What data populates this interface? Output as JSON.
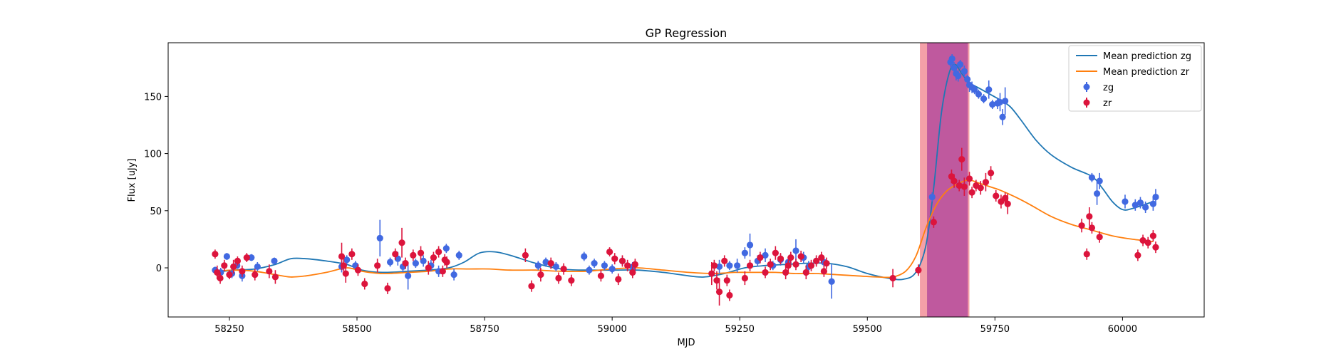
{
  "chart_data": {
    "type": "scatter",
    "title": "GP Regression",
    "xlabel": "MJD",
    "ylabel": "Flux [uJy]",
    "xlim": [
      58130,
      60160
    ],
    "ylim": [
      -43,
      197
    ],
    "x_ticks": [
      58250,
      58500,
      58750,
      59000,
      59250,
      59500,
      59750,
      60000
    ],
    "x_tick_labels": [
      "58250",
      "58500",
      "58750",
      "59000",
      "59250",
      "59500",
      "59750",
      "60000"
    ],
    "y_ticks": [
      0,
      50,
      100,
      150
    ],
    "y_tick_labels": [
      "0",
      "50",
      "100",
      "150"
    ],
    "grid": false,
    "legend_position": "top-right",
    "legend": [
      {
        "label": "Mean prediction zg",
        "kind": "line",
        "color": "#1f77b4"
      },
      {
        "label": "Mean prediction zr",
        "kind": "line",
        "color": "#ff7f0e"
      },
      {
        "label": "zg",
        "kind": "errorbar",
        "color": "#4169e1"
      },
      {
        "label": "zr",
        "kind": "errorbar",
        "color": "#dc143c"
      }
    ],
    "shaded_regions": [
      {
        "x0": 59603,
        "x1": 59700,
        "color": "#f4a0a8",
        "opacity": 1.0
      },
      {
        "x0": 59617,
        "x1": 59697,
        "color": "#b54c9c",
        "opacity": 0.85
      }
    ],
    "series": [
      {
        "name": "Mean prediction zg",
        "type": "line",
        "color": "#1f77b4",
        "x": [
          58220,
          58260,
          58300,
          58340,
          58370,
          58400,
          58440,
          58480,
          58510,
          58550,
          58600,
          58640,
          58680,
          58710,
          58740,
          58770,
          58800,
          58850,
          58900,
          58950,
          59000,
          59050,
          59100,
          59150,
          59180,
          59220,
          59260,
          59300,
          59340,
          59380,
          59420,
          59460,
          59500,
          59540,
          59570,
          59595,
          59615,
          59630,
          59645,
          59660,
          59672,
          59685,
          59700,
          59720,
          59740,
          59760,
          59780,
          59800,
          59830,
          59860,
          59900,
          59940,
          59960,
          59980,
          60000,
          60020,
          60060
        ],
        "y": [
          -4,
          -2,
          -1,
          3,
          8,
          8,
          6,
          3,
          -2,
          -4,
          -3,
          -2,
          0,
          5,
          13,
          14,
          11,
          4,
          -1,
          -2,
          -2,
          -2,
          -4,
          -7,
          -8,
          -5,
          0,
          2,
          3,
          4,
          4,
          1,
          -5,
          -9,
          -10,
          -4,
          20,
          70,
          135,
          170,
          178,
          170,
          162,
          157,
          152,
          147,
          141,
          130,
          112,
          99,
          88,
          80,
          70,
          58,
          51,
          52,
          58
        ]
      },
      {
        "name": "Mean prediction zr",
        "type": "line",
        "color": "#ff7f0e",
        "x": [
          58220,
          58260,
          58300,
          58340,
          58370,
          58400,
          58440,
          58480,
          58510,
          58550,
          58600,
          58640,
          58680,
          58720,
          58760,
          58800,
          58850,
          58900,
          58950,
          59000,
          59050,
          59100,
          59150,
          59200,
          59240,
          59280,
          59320,
          59360,
          59400,
          59440,
          59480,
          59520,
          59550,
          59575,
          59595,
          59615,
          59635,
          59655,
          59675,
          59690,
          59700,
          59720,
          59740,
          59760,
          59790,
          59820,
          59860,
          59900,
          59940,
          59980,
          60020,
          60060
        ],
        "y": [
          -3,
          -2,
          -3,
          -6,
          -8,
          -7,
          -4,
          0,
          -3,
          -5,
          -4,
          -3,
          -1,
          -1,
          -1,
          -2,
          -2,
          -3,
          -3,
          -1,
          0,
          -2,
          -4,
          -5,
          -4,
          -4,
          -4,
          -5,
          -5,
          -6,
          -7,
          -8,
          -8,
          -3,
          10,
          35,
          55,
          67,
          73,
          76,
          77,
          74,
          71,
          68,
          62,
          55,
          45,
          38,
          33,
          28,
          25,
          23
        ]
      },
      {
        "name": "zg",
        "type": "errorbar",
        "color": "#4169e1",
        "x": [
          58222,
          58233,
          58245,
          58255,
          58265,
          58275,
          58293,
          58305,
          58338,
          58470,
          58480,
          58497,
          58545,
          58565,
          58580,
          58590,
          58600,
          58615,
          58630,
          58645,
          58660,
          58675,
          58690,
          58700,
          58855,
          58870,
          58890,
          58945,
          58955,
          58965,
          58985,
          59000,
          59020,
          59040,
          59210,
          59230,
          59245,
          59260,
          59270,
          59285,
          59300,
          59315,
          59330,
          59345,
          59360,
          59375,
          59385,
          59400,
          59415,
          59430,
          59627,
          59663,
          59666,
          59670,
          59674,
          59678,
          59682,
          59690,
          59696,
          59700,
          59705,
          59710,
          59718,
          59728,
          59738,
          59745,
          59755,
          59760,
          59765,
          59770,
          59940,
          59950,
          59955,
          60005,
          60025,
          60035,
          60045,
          60060,
          60065
        ],
        "y": [
          -2,
          -4,
          10,
          -5,
          2,
          -7,
          9,
          1,
          6,
          1,
          7,
          2,
          26,
          5,
          8,
          1,
          -7,
          4,
          6,
          2,
          -3,
          17,
          -6,
          11,
          2,
          5,
          1,
          10,
          -2,
          4,
          2,
          -1,
          6,
          1,
          1,
          2,
          2,
          13,
          20,
          6,
          11,
          2,
          7,
          5,
          15,
          9,
          1,
          6,
          5,
          -12,
          62,
          180,
          183,
          175,
          170,
          168,
          178,
          172,
          165,
          160,
          158,
          156,
          152,
          148,
          156,
          143,
          144,
          145,
          132,
          146,
          79,
          65,
          76,
          58,
          55,
          57,
          53,
          56,
          62
        ],
        "err": [
          3,
          4,
          3,
          4,
          3,
          5,
          3,
          4,
          3,
          5,
          4,
          4,
          16,
          4,
          6,
          5,
          12,
          4,
          5,
          5,
          5,
          4,
          5,
          4,
          4,
          4,
          4,
          4,
          4,
          4,
          4,
          4,
          4,
          4,
          6,
          4,
          6,
          5,
          10,
          5,
          6,
          4,
          5,
          4,
          10,
          5,
          5,
          4,
          4,
          15,
          4,
          4,
          4,
          5,
          6,
          5,
          4,
          5,
          4,
          6,
          5,
          4,
          4,
          4,
          8,
          4,
          5,
          8,
          7,
          12,
          4,
          10,
          7,
          6,
          5,
          5,
          5,
          6,
          7
        ]
      },
      {
        "name": "zr",
        "type": "errorbar",
        "color": "#dc143c",
        "x": [
          58222,
          58226,
          58232,
          58240,
          58250,
          58258,
          58266,
          58275,
          58284,
          58300,
          58328,
          58340,
          58470,
          58474,
          58478,
          58490,
          58502,
          58515,
          58540,
          58560,
          58575,
          58588,
          58595,
          58610,
          58625,
          58640,
          58650,
          58660,
          58668,
          58672,
          58676,
          58830,
          58842,
          58860,
          58880,
          58895,
          58905,
          58920,
          58978,
          58995,
          59005,
          59012,
          59020,
          59030,
          59040,
          59045,
          59195,
          59200,
          59205,
          59210,
          59220,
          59225,
          59230,
          59260,
          59270,
          59290,
          59300,
          59310,
          59320,
          59330,
          59340,
          59345,
          59350,
          59360,
          59370,
          59380,
          59390,
          59400,
          59410,
          59415,
          59420,
          59550,
          59600,
          59630,
          59665,
          59670,
          59680,
          59685,
          59690,
          59700,
          59705,
          59713,
          59722,
          59732,
          59742,
          59752,
          59762,
          59770,
          59775,
          59920,
          59930,
          59935,
          59940,
          59955,
          60030,
          60040,
          60050,
          60060,
          60065
        ],
        "y": [
          12,
          -4,
          -9,
          2,
          -6,
          1,
          6,
          -3,
          9,
          -6,
          -3,
          -8,
          10,
          2,
          -5,
          12,
          -2,
          -14,
          2,
          -18,
          12,
          22,
          4,
          11,
          13,
          0,
          9,
          14,
          -3,
          7,
          5,
          11,
          -16,
          -6,
          4,
          -9,
          -1,
          -11,
          -7,
          14,
          8,
          -10,
          6,
          2,
          -4,
          3,
          -5,
          2,
          -11,
          -21,
          6,
          -11,
          -24,
          -9,
          2,
          9,
          -4,
          3,
          13,
          8,
          -4,
          2,
          9,
          3,
          10,
          -4,
          2,
          6,
          9,
          -3,
          4,
          -9,
          -2,
          40,
          80,
          76,
          72,
          95,
          71,
          78,
          66,
          72,
          70,
          75,
          83,
          63,
          58,
          61,
          56,
          37,
          12,
          45,
          35,
          27,
          11,
          24,
          22,
          28,
          18
        ],
        "err": [
          4,
          6,
          5,
          5,
          4,
          6,
          4,
          5,
          4,
          5,
          6,
          6,
          12,
          6,
          8,
          5,
          5,
          5,
          6,
          5,
          5,
          13,
          5,
          5,
          6,
          6,
          5,
          5,
          5,
          5,
          5,
          6,
          5,
          6,
          5,
          5,
          5,
          5,
          5,
          4,
          5,
          5,
          5,
          5,
          5,
          5,
          10,
          5,
          8,
          12,
          5,
          5,
          5,
          6,
          5,
          5,
          5,
          5,
          6,
          5,
          6,
          5,
          5,
          5,
          5,
          6,
          5,
          5,
          5,
          5,
          5,
          8,
          5,
          5,
          6,
          6,
          5,
          10,
          8,
          6,
          5,
          5,
          6,
          8,
          6,
          5,
          6,
          5,
          9,
          6,
          5,
          8,
          5,
          5,
          5,
          5,
          5,
          5,
          5
        ]
      }
    ]
  }
}
